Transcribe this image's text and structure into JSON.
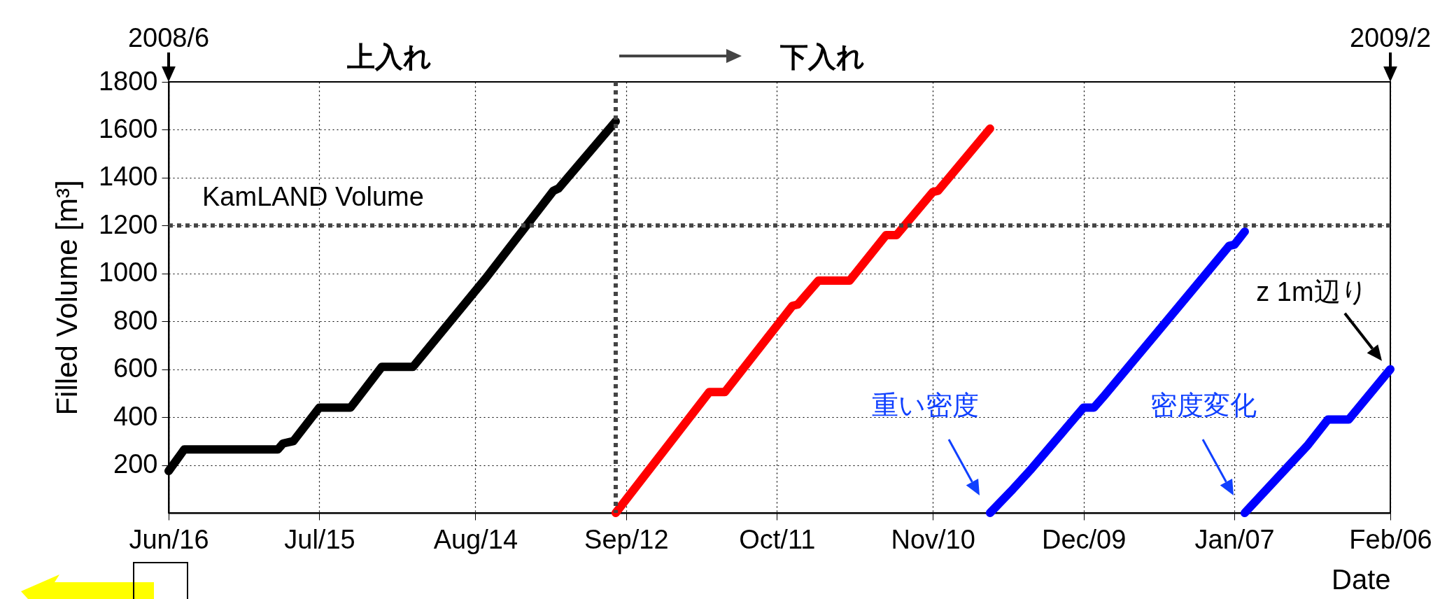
{
  "chart_data": {
    "type": "line",
    "xlabel": "Date",
    "ylabel": "Filled Volume [m³]",
    "xlim": [
      "2008-06-16",
      "2009-02-06"
    ],
    "ylim": [
      0,
      1800
    ],
    "xticks": [
      {
        "value": "2008-06-16",
        "label": "Jun/16"
      },
      {
        "value": "2008-07-15",
        "label": "Jul/15"
      },
      {
        "value": "2008-08-14",
        "label": "Aug/14"
      },
      {
        "value": "2008-09-12",
        "label": "Sep/12"
      },
      {
        "value": "2008-10-11",
        "label": "Oct/11"
      },
      {
        "value": "2008-11-10",
        "label": "Nov/10"
      },
      {
        "value": "2008-12-09",
        "label": "Dec/09"
      },
      {
        "value": "2009-01-07",
        "label": "Jan/07"
      },
      {
        "value": "2009-02-06",
        "label": "Feb/06"
      }
    ],
    "yticks": [
      200,
      400,
      600,
      800,
      1000,
      1200,
      1400,
      1600,
      1800
    ],
    "grid": true,
    "marker": "none",
    "series": [
      {
        "color": "#000000",
        "x": [
          "2008-06-16",
          "2008-06-19",
          "2008-07-07",
          "2008-07-08",
          "2008-07-10",
          "2008-07-15",
          "2008-07-21",
          "2008-07-27",
          "2008-08-02",
          "2008-08-16",
          "2008-08-29",
          "2008-08-30",
          "2008-09-10"
        ],
        "values": [
          175,
          265,
          265,
          290,
          300,
          440,
          440,
          610,
          610,
          980,
          1345,
          1355,
          1635
        ]
      },
      {
        "color": "#ff0000",
        "x": [
          "2008-09-10",
          "2008-09-28",
          "2008-10-01",
          "2008-10-14",
          "2008-10-15",
          "2008-10-19",
          "2008-10-25",
          "2008-11-01",
          "2008-11-03",
          "2008-11-10",
          "2008-11-11",
          "2008-11-21"
        ],
        "values": [
          0,
          505,
          505,
          865,
          870,
          970,
          970,
          1160,
          1160,
          1340,
          1345,
          1605
        ]
      },
      {
        "color": "#0000ff",
        "x": [
          "2008-11-21",
          "2008-11-25",
          "2008-11-29",
          "2008-12-09",
          "2008-12-11",
          "2008-12-13",
          "2008-12-23",
          "2009-01-06",
          "2009-01-07",
          "2009-01-09"
        ],
        "values": [
          0,
          90,
          185,
          440,
          440,
          490,
          750,
          1115,
          1120,
          1175
        ]
      },
      {
        "color": "#0000ff",
        "x": [
          "2009-01-09",
          "2009-01-21",
          "2009-01-25",
          "2009-01-29",
          "2009-02-06"
        ],
        "values": [
          0,
          280,
          390,
          390,
          600
        ]
      }
    ],
    "ref_lines": [
      {
        "axis": "y",
        "value": 1200,
        "label": "KamLAND Volume",
        "color": "#444444",
        "line_style": "dotted"
      },
      {
        "axis": "x",
        "value": "2008-09-10",
        "label": null,
        "color": "#444444",
        "line_style": "dotted"
      }
    ],
    "annotations": [
      "上入れ",
      "下入れ",
      "2008/6",
      "2009/2",
      "重い密度",
      "密度変化",
      {
        "text": "z 1m辺り",
        "x": "2009-02-06",
        "y": 600
      }
    ]
  }
}
